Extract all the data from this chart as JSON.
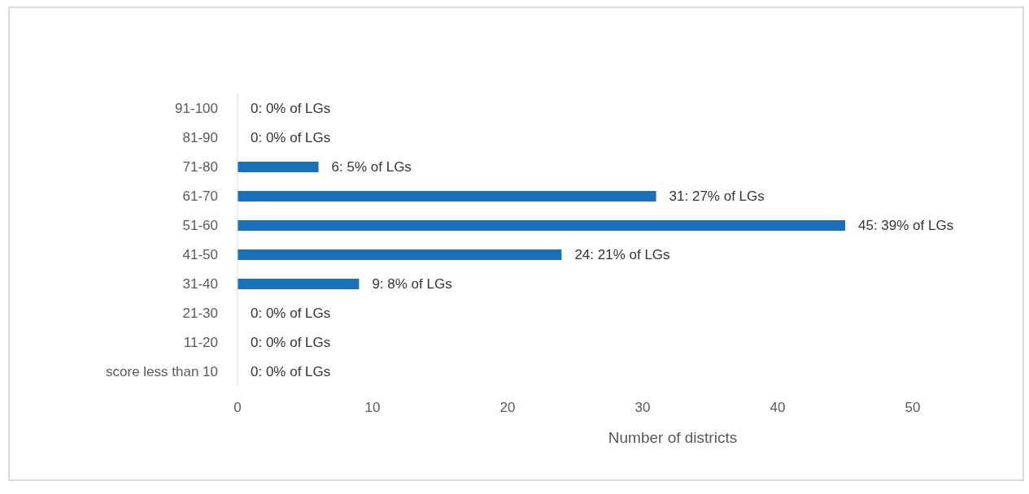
{
  "chart_data": {
    "type": "bar",
    "orientation": "horizontal",
    "xlabel": "Number of districts",
    "categories": [
      "91-100",
      "81-90",
      "71-80",
      "61-70",
      "51-60",
      "41-50",
      "31-40",
      "21-30",
      "11-20",
      "score less than 10"
    ],
    "values": [
      0,
      0,
      6,
      31,
      45,
      24,
      9,
      0,
      0,
      0
    ],
    "value_labels": [
      "0: 0% of LGs",
      "0: 0% of LGs",
      "6: 5% of LGs",
      "31: 27% of LGs",
      "45: 39% of LGs",
      "24: 21% of LGs",
      "9: 8% of LGs",
      "0: 0% of LGs",
      "0: 0% of LGs",
      "0: 0% of LGs"
    ],
    "color": "#1a70b8",
    "xlim": [
      0,
      50
    ],
    "xticks": [
      0,
      10,
      20,
      30,
      40,
      50
    ],
    "grid": false
  }
}
